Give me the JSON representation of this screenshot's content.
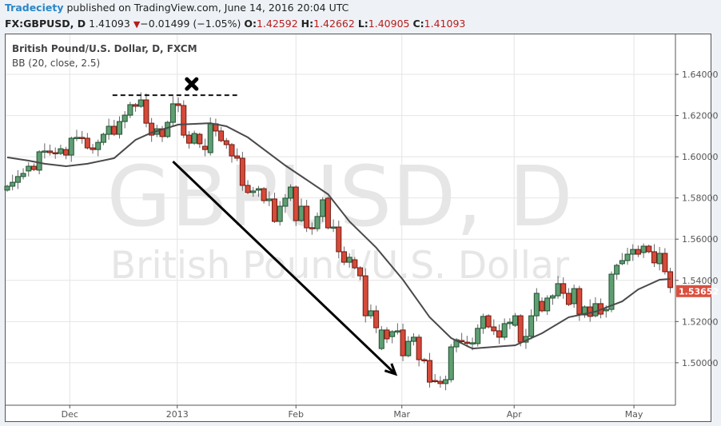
{
  "header": {
    "brand": "Tradeciety",
    "published": " published on TradingView.com, June 14, 2016 20:04 UTC",
    "symbol": "FX:GBPUSD, D",
    "last": "1.41093",
    "change": "−0.01499 (−1.05%)",
    "change_icon": "triangle-down-icon",
    "o_label": "O:",
    "o": "1.42592",
    "h_label": "H:",
    "h": "1.42662",
    "l_label": "L:",
    "l": "1.40905",
    "c_label": "C:",
    "c": "1.41093"
  },
  "legend": {
    "title": "British Pound/U.S. Dollar, D, FXCM",
    "indicator": "BB (20, close, 2.5)"
  },
  "watermark": {
    "line1": "GBPUSD, D",
    "line2": "British Pound/U.S. Dollar"
  },
  "colors": {
    "up": "#5f9e72",
    "up_border": "#1f4f30",
    "down": "#d64a3a",
    "down_border": "#6e1a12",
    "basis": "#4a4a4a",
    "last_price": "#d9503f"
  },
  "chart_data": {
    "type": "candlestick",
    "title": "British Pound/U.S. Dollar, D, FXCM",
    "ylim": [
      1.4835,
      1.662
    ],
    "y_ticks": [
      "1.50000",
      "1.52000",
      "1.54000",
      "1.56000",
      "1.58000",
      "1.60000",
      "1.62000",
      "1.64000"
    ],
    "y_tick_values": [
      1.5,
      1.52,
      1.54,
      1.56,
      1.58,
      1.6,
      1.62,
      1.64
    ],
    "x_ticks": [
      {
        "label": "Dec",
        "bar": 11.7
      },
      {
        "label": "2013",
        "bar": 31.8
      },
      {
        "label": "Feb",
        "bar": 54
      },
      {
        "label": "Mar",
        "bar": 73.8
      },
      {
        "label": "Apr",
        "bar": 94.8
      },
      {
        "label": "May",
        "bar": 117.2
      }
    ],
    "grid": true,
    "last_price_label": "1.53652",
    "candles_open_close": [
      [
        1.5838,
        1.5857
      ],
      [
        1.5857,
        1.5876
      ],
      [
        1.5876,
        1.5904
      ],
      [
        1.5904,
        1.5919
      ],
      [
        1.5931,
        1.5954
      ],
      [
        1.5954,
        1.5938
      ],
      [
        1.5935,
        1.6024
      ],
      [
        1.6024,
        1.6028
      ],
      [
        1.6028,
        1.602
      ],
      [
        1.602,
        1.6016
      ],
      [
        1.6016,
        1.6039
      ],
      [
        1.6035,
        1.6008
      ],
      [
        1.6008,
        1.609
      ],
      [
        1.609,
        1.6094
      ],
      [
        1.6094,
        1.609
      ],
      [
        1.609,
        1.6043
      ],
      [
        1.6043,
        1.6035
      ],
      [
        1.6035,
        1.607
      ],
      [
        1.607,
        1.6109
      ],
      [
        1.6109,
        1.6148
      ],
      [
        1.6148,
        1.6109
      ],
      [
        1.6109,
        1.6171
      ],
      [
        1.6171,
        1.6202
      ],
      [
        1.6202,
        1.6253
      ],
      [
        1.6253,
        1.6245
      ],
      [
        1.6245,
        1.6276
      ],
      [
        1.6276,
        1.6163
      ],
      [
        1.6163,
        1.6105
      ],
      [
        1.6109,
        1.6136
      ],
      [
        1.6136,
        1.6098
      ],
      [
        1.6098,
        1.6167
      ],
      [
        1.6167,
        1.6257
      ],
      [
        1.6257,
        1.6249
      ],
      [
        1.6249,
        1.6105
      ],
      [
        1.6105,
        1.6066
      ],
      [
        1.6066,
        1.6113
      ],
      [
        1.6109,
        1.6063
      ],
      [
        1.6051,
        1.6035
      ],
      [
        1.602,
        1.616
      ],
      [
        1.616,
        1.6125
      ],
      [
        1.6125,
        1.6078
      ],
      [
        1.6078,
        1.6059
      ],
      [
        1.6059,
        1.6004
      ],
      [
        1.6004,
        1.5993
      ],
      [
        1.5993,
        1.5861
      ],
      [
        1.5861,
        1.5826
      ],
      [
        1.5826,
        1.5834
      ],
      [
        1.5838,
        1.5845
      ],
      [
        1.5845,
        1.5787
      ],
      [
        1.5787,
        1.5795
      ],
      [
        1.5795,
        1.5686
      ],
      [
        1.5686,
        1.576
      ],
      [
        1.576,
        1.5799
      ],
      [
        1.5799,
        1.5853
      ],
      [
        1.5853,
        1.569
      ],
      [
        1.569,
        1.576
      ],
      [
        1.576,
        1.5655
      ],
      [
        1.5656,
        1.5654
      ],
      [
        1.5651,
        1.571
      ],
      [
        1.571,
        1.5791
      ],
      [
        1.5799,
        1.5655
      ],
      [
        1.5655,
        1.5659
      ],
      [
        1.5659,
        1.5539
      ],
      [
        1.5539,
        1.5488
      ],
      [
        1.5488,
        1.5512
      ],
      [
        1.55,
        1.5461
      ],
      [
        1.5461,
        1.5422
      ],
      [
        1.5422,
        1.5228
      ],
      [
        1.5228,
        1.5252
      ],
      [
        1.5252,
        1.517
      ],
      [
        1.5069,
        1.5159
      ],
      [
        1.5159,
        1.5116
      ],
      [
        1.5127,
        1.5151
      ],
      [
        1.5151,
        1.5155
      ],
      [
        1.5159,
        1.5034
      ],
      [
        1.5034,
        1.5104
      ],
      [
        1.5104,
        1.5124
      ],
      [
        1.5124,
        1.5015
      ],
      [
        1.5015,
        1.5011
      ],
      [
        1.5011,
        1.4906
      ],
      [
        1.4914,
        1.491
      ],
      [
        1.491,
        1.4899
      ],
      [
        1.4899,
        1.4918
      ],
      [
        1.4918,
        1.5077
      ],
      [
        1.5077,
        1.5112
      ],
      [
        1.5108,
        1.5104
      ],
      [
        1.51,
        1.5096
      ],
      [
        1.5093,
        1.5097
      ],
      [
        1.5093,
        1.5167
      ],
      [
        1.5167,
        1.5225
      ],
      [
        1.5228,
        1.5174
      ],
      [
        1.5174,
        1.5155
      ],
      [
        1.5155,
        1.5124
      ],
      [
        1.5124,
        1.519
      ],
      [
        1.519,
        1.5197
      ],
      [
        1.5182,
        1.5228
      ],
      [
        1.5228,
        1.51
      ],
      [
        1.51,
        1.5128
      ],
      [
        1.5128,
        1.5228
      ],
      [
        1.5228,
        1.5337
      ],
      [
        1.5298,
        1.5252
      ],
      [
        1.5252,
        1.5314
      ],
      [
        1.5314,
        1.5325
      ],
      [
        1.5325,
        1.5384
      ],
      [
        1.5384,
        1.5337
      ],
      [
        1.5337,
        1.5283
      ],
      [
        1.5287,
        1.536
      ],
      [
        1.536,
        1.5236
      ],
      [
        1.5232,
        1.5271
      ],
      [
        1.5271,
        1.5225
      ],
      [
        1.5228,
        1.5287
      ],
      [
        1.5287,
        1.5236
      ],
      [
        1.5252,
        1.5259
      ],
      [
        1.5259,
        1.543
      ],
      [
        1.543,
        1.5473
      ],
      [
        1.5481,
        1.5496
      ],
      [
        1.5496,
        1.5527
      ],
      [
        1.5527,
        1.555
      ],
      [
        1.555,
        1.5527
      ],
      [
        1.5535,
        1.5566
      ],
      [
        1.5566,
        1.5539
      ],
      [
        1.5539,
        1.5485
      ],
      [
        1.5481,
        1.5531
      ],
      [
        1.5531,
        1.5442
      ],
      [
        1.5442,
        1.5365
      ]
    ],
    "bb_basis": [
      [
        0,
        1.5997
      ],
      [
        4,
        1.5981
      ],
      [
        7,
        1.5966
      ],
      [
        11,
        1.5954
      ],
      [
        15,
        1.5966
      ],
      [
        20,
        1.5993
      ],
      [
        24,
        1.6082
      ],
      [
        27,
        1.6117
      ],
      [
        32,
        1.6156
      ],
      [
        38,
        1.6163
      ],
      [
        41,
        1.6148
      ],
      [
        45,
        1.6094
      ],
      [
        52,
        1.5958
      ],
      [
        60,
        1.5818
      ],
      [
        64,
        1.5686
      ],
      [
        69,
        1.5559
      ],
      [
        74,
        1.5403
      ],
      [
        79,
        1.5221
      ],
      [
        83,
        1.512
      ],
      [
        87,
        1.5069
      ],
      [
        95,
        1.5085
      ],
      [
        100,
        1.5143
      ],
      [
        105,
        1.5221
      ],
      [
        110,
        1.5248
      ],
      [
        115,
        1.5298
      ],
      [
        118,
        1.5356
      ],
      [
        122,
        1.5403
      ],
      [
        124,
        1.5407
      ]
    ],
    "annotations": {
      "resistance_level": 1.6299,
      "resistance_bars": [
        19.7,
        43
      ],
      "x_mark": {
        "bar": 34.5,
        "price": 1.6353
      },
      "arrow": {
        "from": {
          "bar": 31,
          "price": 1.5977
        },
        "to": {
          "bar": 72.6,
          "price": 1.4945
        }
      }
    }
  }
}
